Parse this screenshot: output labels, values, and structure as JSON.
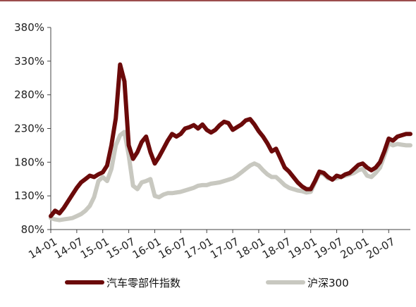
{
  "chart_data": {
    "type": "line",
    "y_unit": "%",
    "ylim": [
      80,
      380
    ],
    "y_ticks": [
      80,
      130,
      180,
      230,
      280,
      330,
      380
    ],
    "y_tick_labels": [
      "80%",
      "130%",
      "180%",
      "230%",
      "280%",
      "330%",
      "380%"
    ],
    "x_range": [
      "14-01",
      "20-12"
    ],
    "x_ticks": [
      "14-01",
      "14-07",
      "15-01",
      "15-07",
      "16-01",
      "16-07",
      "17-01",
      "17-07",
      "18-01",
      "18-07",
      "19-01",
      "19-07",
      "20-01",
      "20-07"
    ],
    "grid": false,
    "legend_position": "bottom",
    "series": [
      {
        "name": "汽车零部件指数",
        "color": "#6b0a0a",
        "x": [
          "14-01",
          "14-02",
          "14-03",
          "14-04",
          "14-05",
          "14-06",
          "14-07",
          "14-08",
          "14-09",
          "14-10",
          "14-11",
          "14-12",
          "15-01",
          "15-02",
          "15-03",
          "15-04",
          "15-05",
          "15-06",
          "15-07",
          "15-08",
          "15-09",
          "15-10",
          "15-11",
          "15-12",
          "16-01",
          "16-02",
          "16-03",
          "16-04",
          "16-05",
          "16-06",
          "16-07",
          "16-08",
          "16-09",
          "16-10",
          "16-11",
          "16-12",
          "17-01",
          "17-02",
          "17-03",
          "17-04",
          "17-05",
          "17-06",
          "17-07",
          "17-08",
          "17-09",
          "17-10",
          "17-11",
          "17-12",
          "18-01",
          "18-02",
          "18-03",
          "18-04",
          "18-05",
          "18-06",
          "18-07",
          "18-08",
          "18-09",
          "18-10",
          "18-11",
          "18-12",
          "19-01",
          "19-02",
          "19-03",
          "19-04",
          "19-05",
          "19-06",
          "19-07",
          "19-08",
          "19-09",
          "19-10",
          "19-11",
          "19-12",
          "20-01",
          "20-02",
          "20-03",
          "20-04",
          "20-05",
          "20-06",
          "20-07",
          "20-08",
          "20-09",
          "20-10",
          "20-11",
          "20-12"
        ],
        "values": [
          100,
          108,
          104,
          112,
          122,
          132,
          142,
          150,
          155,
          160,
          158,
          162,
          165,
          175,
          205,
          245,
          325,
          300,
          205,
          185,
          195,
          210,
          218,
          195,
          178,
          188,
          200,
          212,
          222,
          218,
          222,
          230,
          232,
          235,
          230,
          236,
          228,
          224,
          228,
          235,
          240,
          238,
          228,
          232,
          236,
          242,
          244,
          236,
          226,
          218,
          208,
          196,
          200,
          186,
          172,
          166,
          158,
          150,
          144,
          140,
          140,
          152,
          166,
          164,
          158,
          154,
          160,
          158,
          162,
          164,
          170,
          176,
          178,
          172,
          168,
          172,
          180,
          196,
          215,
          212,
          218,
          220,
          222,
          222
        ]
      },
      {
        "name": "沪深300",
        "color": "#c8c8c0",
        "x": [
          "14-01",
          "14-02",
          "14-03",
          "14-04",
          "14-05",
          "14-06",
          "14-07",
          "14-08",
          "14-09",
          "14-10",
          "14-11",
          "14-12",
          "15-01",
          "15-02",
          "15-03",
          "15-04",
          "15-05",
          "15-06",
          "15-07",
          "15-08",
          "15-09",
          "15-10",
          "15-11",
          "15-12",
          "16-01",
          "16-02",
          "16-03",
          "16-04",
          "16-05",
          "16-06",
          "16-07",
          "16-08",
          "16-09",
          "16-10",
          "16-11",
          "16-12",
          "17-01",
          "17-02",
          "17-03",
          "17-04",
          "17-05",
          "17-06",
          "17-07",
          "17-08",
          "17-09",
          "17-10",
          "17-11",
          "17-12",
          "18-01",
          "18-02",
          "18-03",
          "18-04",
          "18-05",
          "18-06",
          "18-07",
          "18-08",
          "18-09",
          "18-10",
          "18-11",
          "18-12",
          "19-01",
          "19-02",
          "19-03",
          "19-04",
          "19-05",
          "19-06",
          "19-07",
          "19-08",
          "19-09",
          "19-10",
          "19-11",
          "19-12",
          "20-01",
          "20-02",
          "20-03",
          "20-04",
          "20-05",
          "20-06",
          "20-07",
          "20-08",
          "20-09",
          "20-10",
          "20-11",
          "20-12"
        ],
        "values": [
          97,
          95,
          94,
          95,
          96,
          97,
          100,
          103,
          108,
          115,
          128,
          152,
          158,
          152,
          170,
          205,
          220,
          225,
          190,
          145,
          140,
          150,
          152,
          155,
          130,
          128,
          132,
          134,
          134,
          135,
          136,
          138,
          140,
          142,
          145,
          146,
          146,
          148,
          149,
          150,
          152,
          154,
          156,
          160,
          165,
          170,
          175,
          178,
          175,
          168,
          162,
          158,
          158,
          152,
          146,
          142,
          140,
          138,
          137,
          135,
          136,
          150,
          164,
          162,
          156,
          155,
          156,
          158,
          160,
          162,
          164,
          168,
          170,
          160,
          158,
          164,
          172,
          190,
          208,
          205,
          207,
          206,
          205,
          205
        ]
      }
    ]
  }
}
